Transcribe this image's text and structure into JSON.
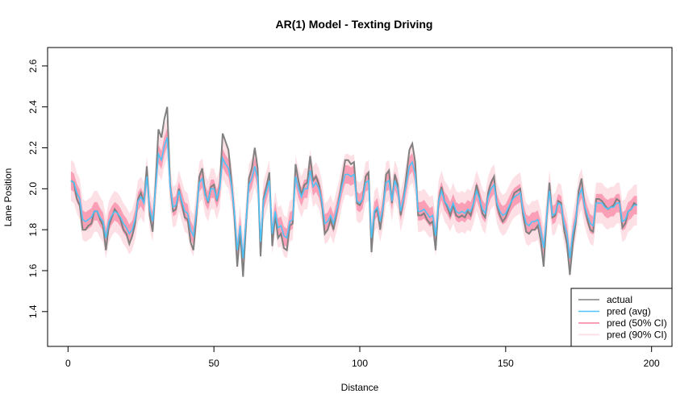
{
  "chart_data": {
    "type": "line",
    "title": "AR(1) Model - Texting Driving",
    "xlabel": "Distance",
    "ylabel": "Lane Position",
    "xlim": [
      -7,
      207
    ],
    "ylim": [
      1.23,
      2.69
    ],
    "xticks": [
      0,
      50,
      100,
      150,
      200
    ],
    "yticks": [
      1.4,
      1.6,
      1.8,
      2.0,
      2.2,
      2.4,
      2.6
    ],
    "ytick_labels": [
      "1.4",
      "1.6",
      "1.8",
      "2.0",
      "2.2",
      "2.4",
      "2.6"
    ],
    "legend_position": "bottom-right",
    "colors": {
      "actual": "#808080",
      "pred_avg": "#4fc3f7",
      "ci50": "#fa9fb5",
      "ci90": "#fde0e6"
    },
    "legend": [
      {
        "label": "actual",
        "key": "actual"
      },
      {
        "label": "pred (avg)",
        "key": "pred_avg"
      },
      {
        "label": "pred (50% CI)",
        "key": "ci50"
      },
      {
        "label": "pred (90% CI)",
        "key": "ci90"
      }
    ],
    "x_start": 1,
    "x_step": 1,
    "actual": [
      2.04,
      2.03,
      1.95,
      1.92,
      1.8,
      1.8,
      1.82,
      1.83,
      1.89,
      1.89,
      1.85,
      1.82,
      1.7,
      1.82,
      1.86,
      1.9,
      1.88,
      1.85,
      1.8,
      1.78,
      1.73,
      1.77,
      1.83,
      1.95,
      1.98,
      1.93,
      2.11,
      1.87,
      1.79,
      2.02,
      2.29,
      2.25,
      2.34,
      2.4,
      2.02,
      1.89,
      1.9,
      2.0,
      1.93,
      1.86,
      1.85,
      1.74,
      1.7,
      1.87,
      2.06,
      2.1,
      1.98,
      1.93,
      2.01,
      2.02,
      1.94,
      2.01,
      2.27,
      2.23,
      2.19,
      2.04,
      1.87,
      1.62,
      1.79,
      1.57,
      1.82,
      2.05,
      2.1,
      2.2,
      2.1,
      1.67,
      1.95,
      2.01,
      2.08,
      1.72,
      1.87,
      1.76,
      1.78,
      1.71,
      1.7,
      1.82,
      1.83,
      2.12,
      2.04,
      1.97,
      2.02,
      2.03,
      2.16,
      2.04,
      2.06,
      2.02,
      1.93,
      1.78,
      1.8,
      1.85,
      1.8,
      1.88,
      1.96,
      2.05,
      2.14,
      2.14,
      2.12,
      2.13,
      1.93,
      1.92,
      1.95,
      2.06,
      2.08,
      1.69,
      1.88,
      1.9,
      1.8,
      1.91,
      2.07,
      2.09,
      1.93,
      2.07,
      2.02,
      1.87,
      1.95,
      2.07,
      2.19,
      2.22,
      2.13,
      1.87,
      1.87,
      1.88,
      1.85,
      1.83,
      1.84,
      1.7,
      1.94,
      2.01,
      1.94,
      1.91,
      1.87,
      1.92,
      1.87,
      1.86,
      1.87,
      1.86,
      1.89,
      1.87,
      1.93,
      2.02,
      1.96,
      1.88,
      1.86,
      1.98,
      2.03,
      2.06,
      1.92,
      1.87,
      1.84,
      1.86,
      1.9,
      1.94,
      1.98,
      1.99,
      2.0,
      1.87,
      1.79,
      1.78,
      1.8,
      1.8,
      1.82,
      1.75,
      1.62,
      1.85,
      2.03,
      1.86,
      1.87,
      1.94,
      1.93,
      1.8,
      1.73,
      1.58,
      1.73,
      1.83,
      1.99,
      2.05,
      1.92,
      1.85,
      1.8,
      1.79,
      1.95,
      1.95,
      1.94,
      1.92,
      1.9,
      1.91,
      1.92,
      1.95,
      1.94,
      1.81,
      1.83,
      1.89,
      1.9,
      1.93,
      1.92
    ],
    "pred_avg": [
      2.04,
      2.03,
      1.98,
      1.95,
      1.85,
      1.84,
      1.85,
      1.86,
      1.89,
      1.89,
      1.86,
      1.84,
      1.76,
      1.84,
      1.87,
      1.89,
      1.88,
      1.86,
      1.83,
      1.81,
      1.78,
      1.8,
      1.85,
      1.94,
      1.96,
      1.93,
      2.06,
      1.9,
      1.84,
      2.0,
      2.17,
      2.14,
      2.21,
      2.25,
      2.01,
      1.91,
      1.92,
      1.99,
      1.94,
      1.89,
      1.88,
      1.8,
      1.77,
      1.89,
      2.03,
      2.05,
      1.97,
      1.94,
      2.0,
      2.0,
      1.95,
      2.0,
      2.15,
      2.12,
      2.1,
      2.02,
      1.89,
      1.7,
      1.82,
      1.66,
      1.84,
      2.02,
      2.05,
      2.11,
      2.05,
      1.74,
      1.94,
      1.99,
      2.04,
      1.78,
      1.89,
      1.81,
      1.82,
      1.77,
      1.76,
      1.84,
      1.85,
      2.06,
      2.0,
      1.96,
      2.0,
      2.0,
      2.09,
      2.01,
      2.03,
      2.0,
      1.94,
      1.83,
      1.84,
      1.87,
      1.83,
      1.89,
      1.95,
      2.02,
      2.07,
      2.07,
      2.06,
      2.07,
      1.94,
      1.93,
      1.95,
      2.03,
      2.04,
      1.76,
      1.89,
      1.91,
      1.84,
      1.91,
      2.03,
      2.04,
      1.94,
      2.04,
      2.0,
      1.89,
      1.95,
      2.03,
      2.11,
      2.13,
      2.07,
      1.89,
      1.89,
      1.9,
      1.88,
      1.86,
      1.87,
      1.77,
      1.94,
      1.99,
      1.94,
      1.92,
      1.89,
      1.93,
      1.89,
      1.88,
      1.89,
      1.88,
      1.9,
      1.89,
      1.93,
      1.99,
      1.95,
      1.9,
      1.88,
      1.96,
      2.0,
      2.02,
      1.93,
      1.89,
      1.87,
      1.88,
      1.91,
      1.94,
      1.96,
      1.97,
      1.98,
      1.89,
      1.83,
      1.82,
      1.84,
      1.84,
      1.85,
      1.8,
      1.71,
      1.86,
      1.99,
      1.87,
      1.88,
      1.93,
      1.92,
      1.83,
      1.78,
      1.66,
      1.78,
      1.85,
      1.96,
      2.0,
      1.92,
      1.87,
      1.83,
      1.82,
      1.93,
      1.93,
      1.93,
      1.91,
      1.9,
      1.91,
      1.91,
      1.93,
      1.93,
      1.84,
      1.85,
      1.89,
      1.9,
      1.92,
      1.92
    ],
    "ci50_halfwidth": 0.045,
    "ci90_halfwidth": 0.1
  }
}
